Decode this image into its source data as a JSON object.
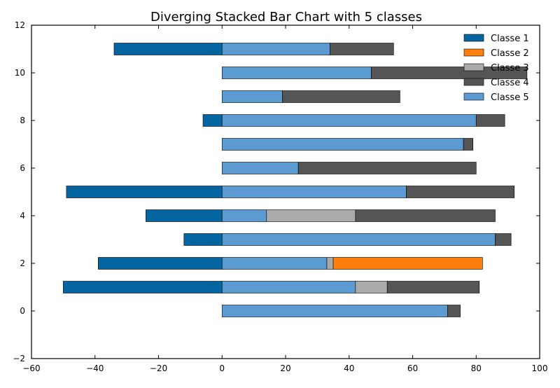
{
  "chart_data": {
    "type": "bar",
    "orientation": "horizontal",
    "stacked": true,
    "diverging": true,
    "title": "Diverging Stacked Bar Chart with 5 classes",
    "xlabel": "",
    "ylabel": "",
    "xlim": [
      -60,
      100
    ],
    "ylim": [
      -2,
      12
    ],
    "xticks": [
      -60,
      -40,
      -20,
      0,
      20,
      40,
      60,
      80,
      100
    ],
    "yticks": [
      -2,
      0,
      2,
      4,
      6,
      8,
      10,
      12
    ],
    "grid": false,
    "legend_position": "top-right",
    "categories": [
      0,
      1,
      2,
      3,
      4,
      5,
      6,
      7,
      8,
      9,
      10,
      11
    ],
    "series": [
      {
        "name": "Classe 1",
        "color": "#0565a0",
        "values": [
          0,
          -50,
          -39,
          -12,
          -24,
          -49,
          0,
          0,
          -6,
          0,
          0,
          -34
        ]
      },
      {
        "name": "Classe 2",
        "color": "#ff7f0e",
        "values": [
          0,
          0,
          47,
          0,
          0,
          0,
          0,
          0,
          0,
          0,
          0,
          0
        ]
      },
      {
        "name": "Classe 3",
        "color": "#aaaaaa",
        "values": [
          0,
          10,
          2,
          0,
          28,
          0,
          0,
          0,
          0,
          0,
          0,
          0
        ]
      },
      {
        "name": "Classe 4",
        "color": "#555555",
        "values": [
          4,
          29,
          0,
          5,
          44,
          34,
          56,
          3,
          9,
          37,
          49,
          20
        ]
      },
      {
        "name": "Classe 5",
        "color": "#5b9bd1",
        "values": [
          71,
          42,
          33,
          86,
          14,
          58,
          24,
          76,
          80,
          19,
          47,
          34
        ]
      }
    ],
    "stack_order": [
      "Classe 5",
      "Classe 3",
      "Classe 2",
      "Classe 4"
    ]
  }
}
